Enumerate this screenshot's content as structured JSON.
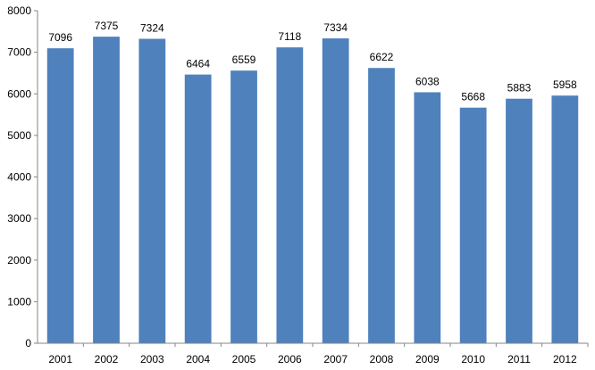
{
  "chart_data": {
    "type": "bar",
    "title": "",
    "xlabel": "",
    "ylabel": "",
    "categories": [
      "2001",
      "2002",
      "2003",
      "2004",
      "2005",
      "2006",
      "2007",
      "2008",
      "2009",
      "2010",
      "2011",
      "2012"
    ],
    "values": [
      7096,
      7375,
      7324,
      6464,
      6559,
      7118,
      7334,
      6622,
      6038,
      5668,
      5883,
      5958
    ],
    "ylim": [
      0,
      8000
    ],
    "yticks": [
      "0",
      "1000",
      "2000",
      "3000",
      "4000",
      "5000",
      "6000",
      "7000",
      "8000"
    ],
    "grid": false,
    "legend": "none",
    "bar_color": "#4F81BD",
    "axis_color": "#868686"
  }
}
